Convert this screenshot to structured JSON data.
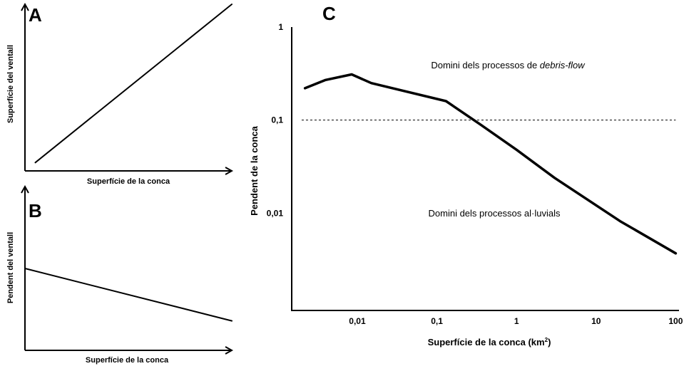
{
  "chart_data": [
    {
      "panel": "A",
      "type": "line",
      "xlabel": "Superfície de la conca",
      "ylabel": "Superfície del ventall",
      "series": [
        {
          "x": [
            0.05,
            1.0
          ],
          "y": [
            0.05,
            1.0
          ]
        }
      ]
    },
    {
      "panel": "B",
      "type": "line",
      "xlabel": "Superfície de la conca",
      "ylabel": "Pendent del ventall",
      "series": [
        {
          "x": [
            0.0,
            1.0
          ],
          "y": [
            0.5,
            0.18
          ]
        }
      ]
    },
    {
      "panel": "C",
      "type": "line",
      "xlabel": "Superfície de la conca (km",
      "xlabel_sup": "2",
      "ylabel": "Pendent de la conca",
      "x_scale": "log",
      "y_scale": "log",
      "xlim": [
        0.0015,
        110
      ],
      "ylim": [
        0.0009,
        1
      ],
      "x_ticks": [
        {
          "value": 0.01,
          "label": "0,01"
        },
        {
          "value": 0.1,
          "label": "0,1"
        },
        {
          "value": 1,
          "label": "1"
        },
        {
          "value": 10,
          "label": "10"
        },
        {
          "value": 100,
          "label": "100"
        }
      ],
      "y_ticks": [
        {
          "value": 1,
          "label": "1"
        },
        {
          "value": 0.1,
          "label": "0,1"
        },
        {
          "value": 0.01,
          "label": "0,01"
        }
      ],
      "threshold": {
        "y": 0.1,
        "style": "dashed"
      },
      "series": [
        {
          "x": [
            0.0022,
            0.004,
            0.0085,
            0.015,
            0.13,
            0.35,
            1,
            3,
            20,
            100
          ],
          "y": [
            0.22,
            0.27,
            0.31,
            0.25,
            0.16,
            0.09,
            0.048,
            0.024,
            0.0082,
            0.0037
          ]
        }
      ],
      "annotations": {
        "upper_prefix": "Domini dels processos de ",
        "upper_em": "debris-flow",
        "lower": "Domini dels processos al·luvials"
      }
    }
  ]
}
